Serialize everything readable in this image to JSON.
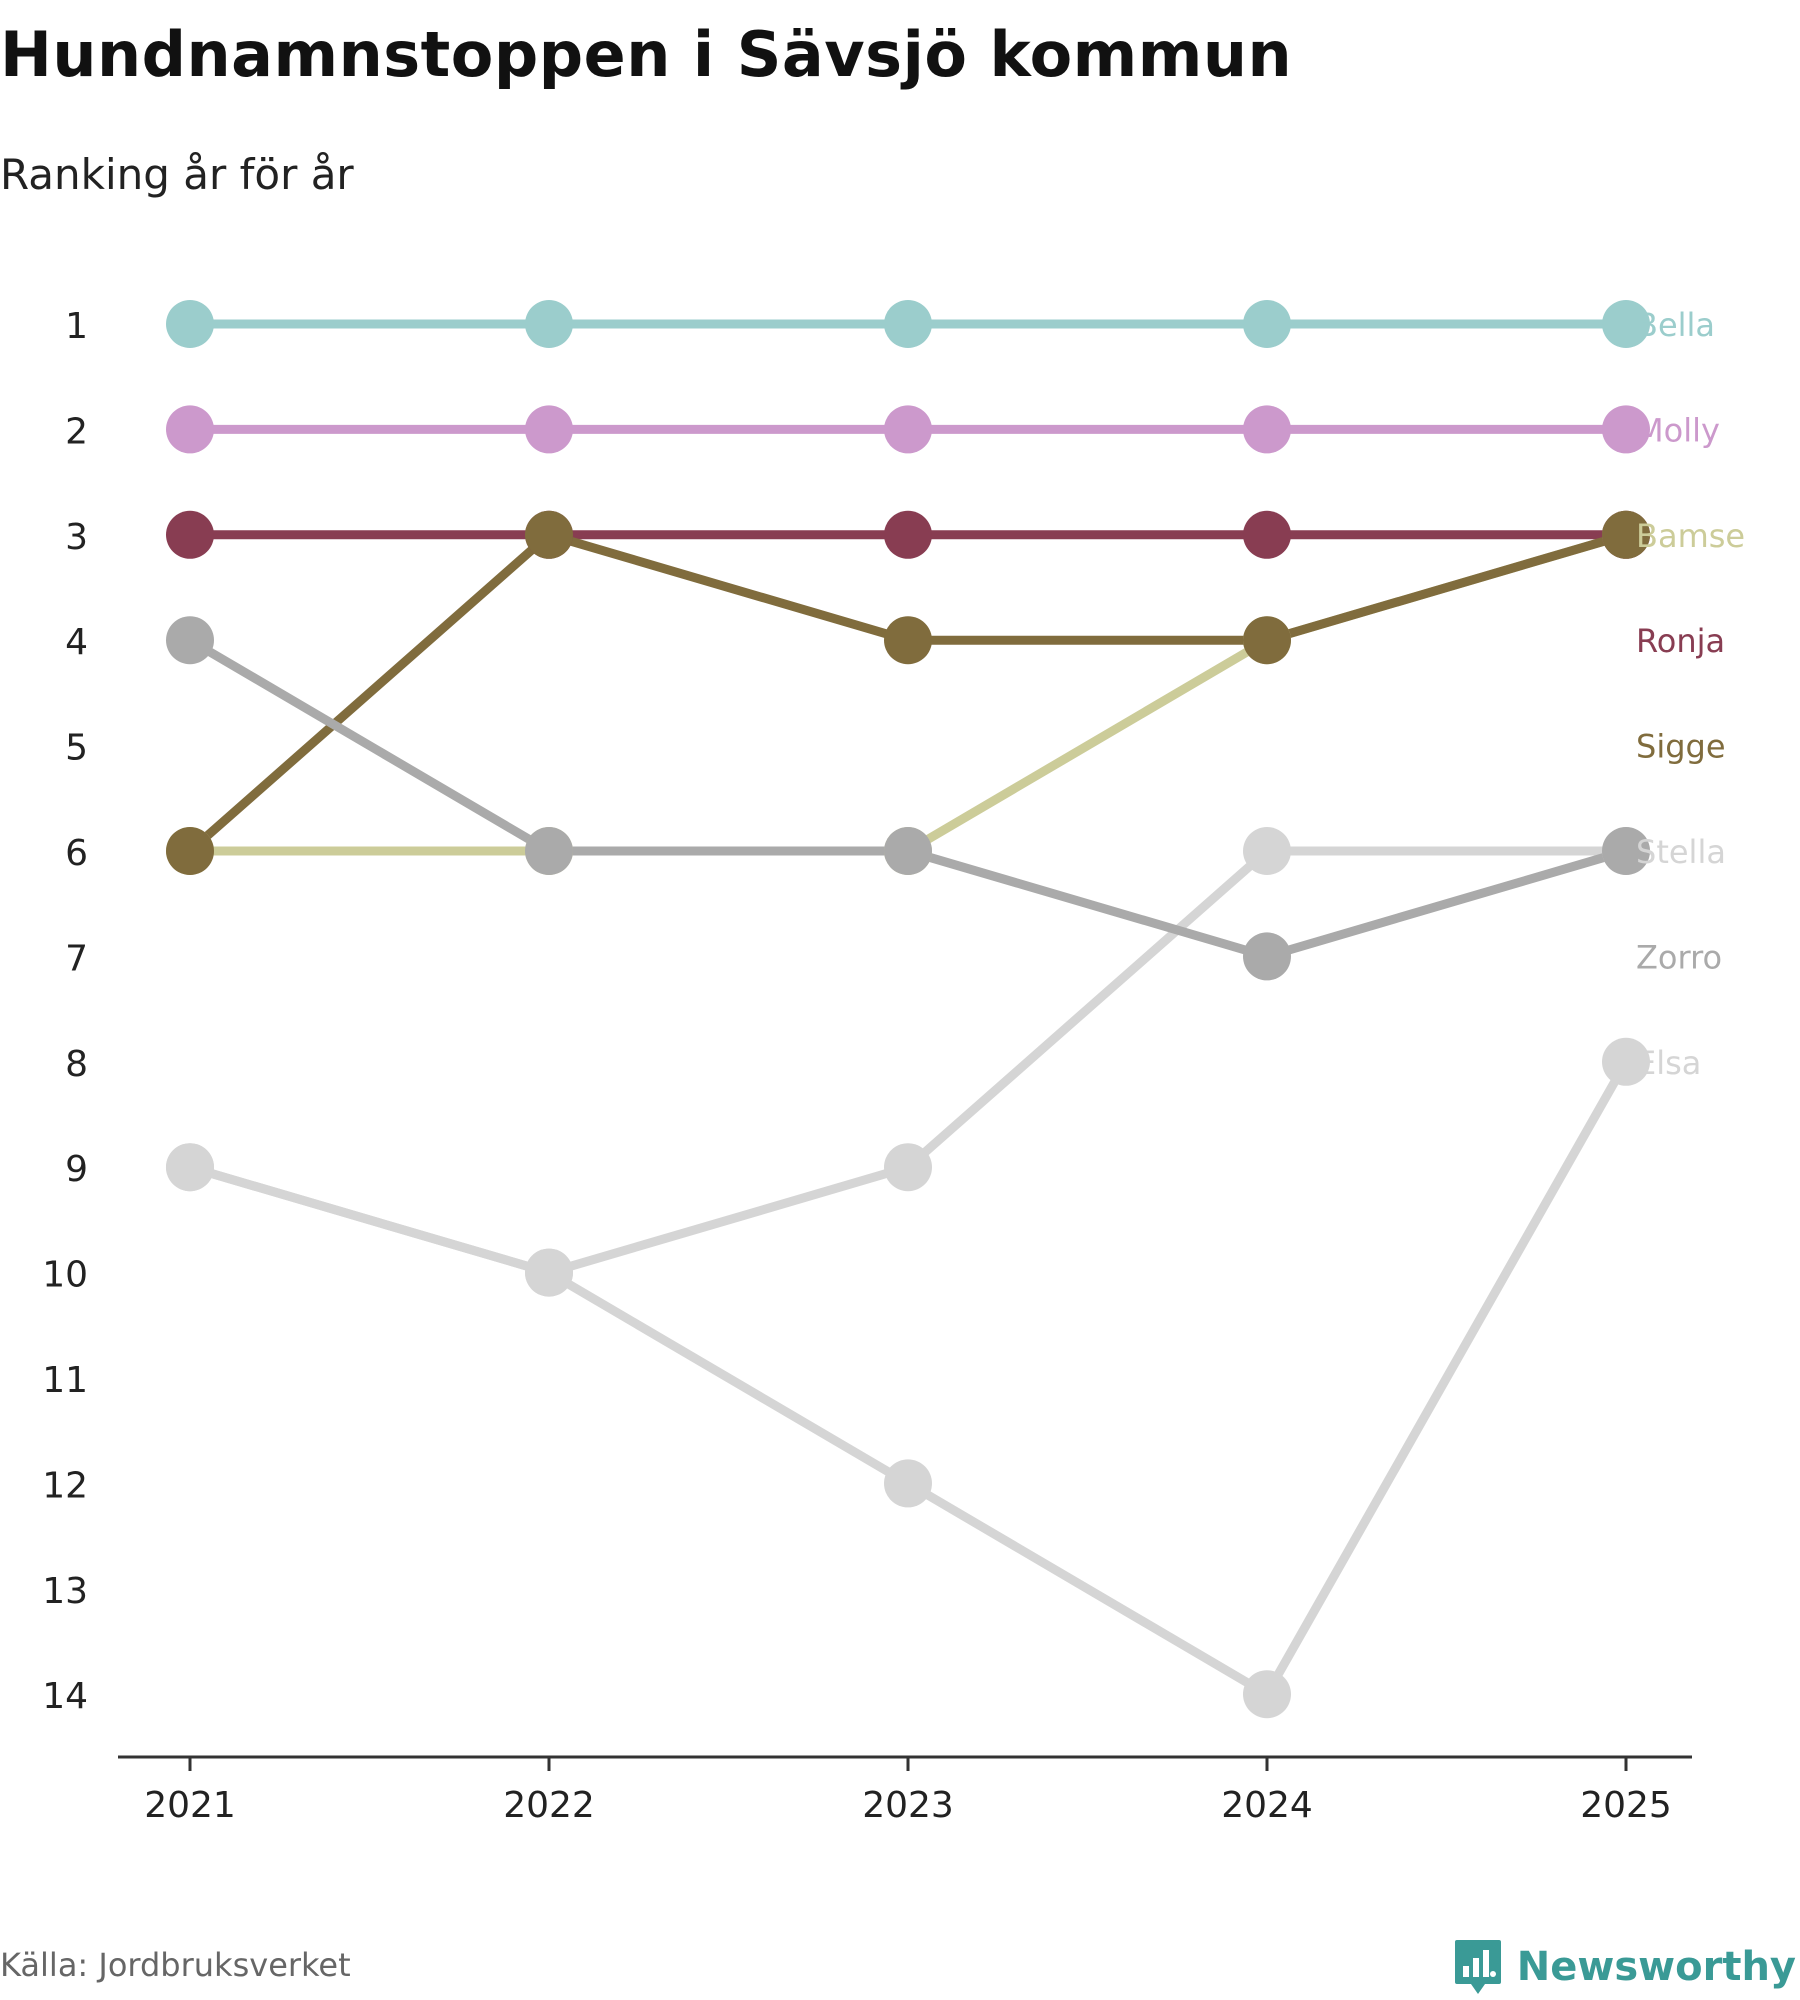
{
  "header": {
    "title": "Hundnamnstoppen i Sävsjö kommun",
    "subtitle": "Ranking år för år"
  },
  "footer": {
    "source": "Källa: Jordbruksverket",
    "brand": "Newsworthy",
    "brand_icon": "bar-chart-speech-bubble-icon",
    "brand_color": "#3a9a96"
  },
  "chart_data": {
    "type": "line",
    "title": "Hundnamnstoppen i Sävsjö kommun",
    "subtitle": "Ranking år för år",
    "xlabel": "",
    "ylabel": "",
    "x": [
      "2021",
      "2022",
      "2023",
      "2024",
      "2025"
    ],
    "y_ticks": [
      "1",
      "2",
      "3",
      "4",
      "5",
      "6",
      "7",
      "8",
      "9",
      "10",
      "11",
      "12",
      "13",
      "14"
    ],
    "ylim": [
      1,
      14
    ],
    "y_inverted": true,
    "grid": false,
    "legend": "direct labels right",
    "series": [
      {
        "name": "Bella",
        "color": "#9bcdcc",
        "values": [
          1,
          1,
          1,
          1,
          1
        ]
      },
      {
        "name": "Molly",
        "color": "#cc99cc",
        "values": [
          2,
          2,
          2,
          2,
          2
        ]
      },
      {
        "name": "Bamse",
        "color": "#cccc99",
        "values": [
          6,
          6,
          6,
          4,
          3
        ]
      },
      {
        "name": "Ronja",
        "color": "#883d52",
        "values": [
          3,
          3,
          3,
          3,
          3
        ]
      },
      {
        "name": "Sigge",
        "color": "#806c3d",
        "values": [
          6,
          3,
          4,
          4,
          3
        ]
      },
      {
        "name": "Stella",
        "color": "#d5d5d5",
        "values": [
          9,
          10,
          9,
          6,
          6
        ]
      },
      {
        "name": "Zorro",
        "color": "#aaaaaa",
        "values": [
          4,
          6,
          6,
          7,
          6
        ]
      },
      {
        "name": "Elsa",
        "color": "#d5d5d5",
        "values": [
          9,
          10,
          12,
          14,
          8
        ]
      }
    ]
  }
}
